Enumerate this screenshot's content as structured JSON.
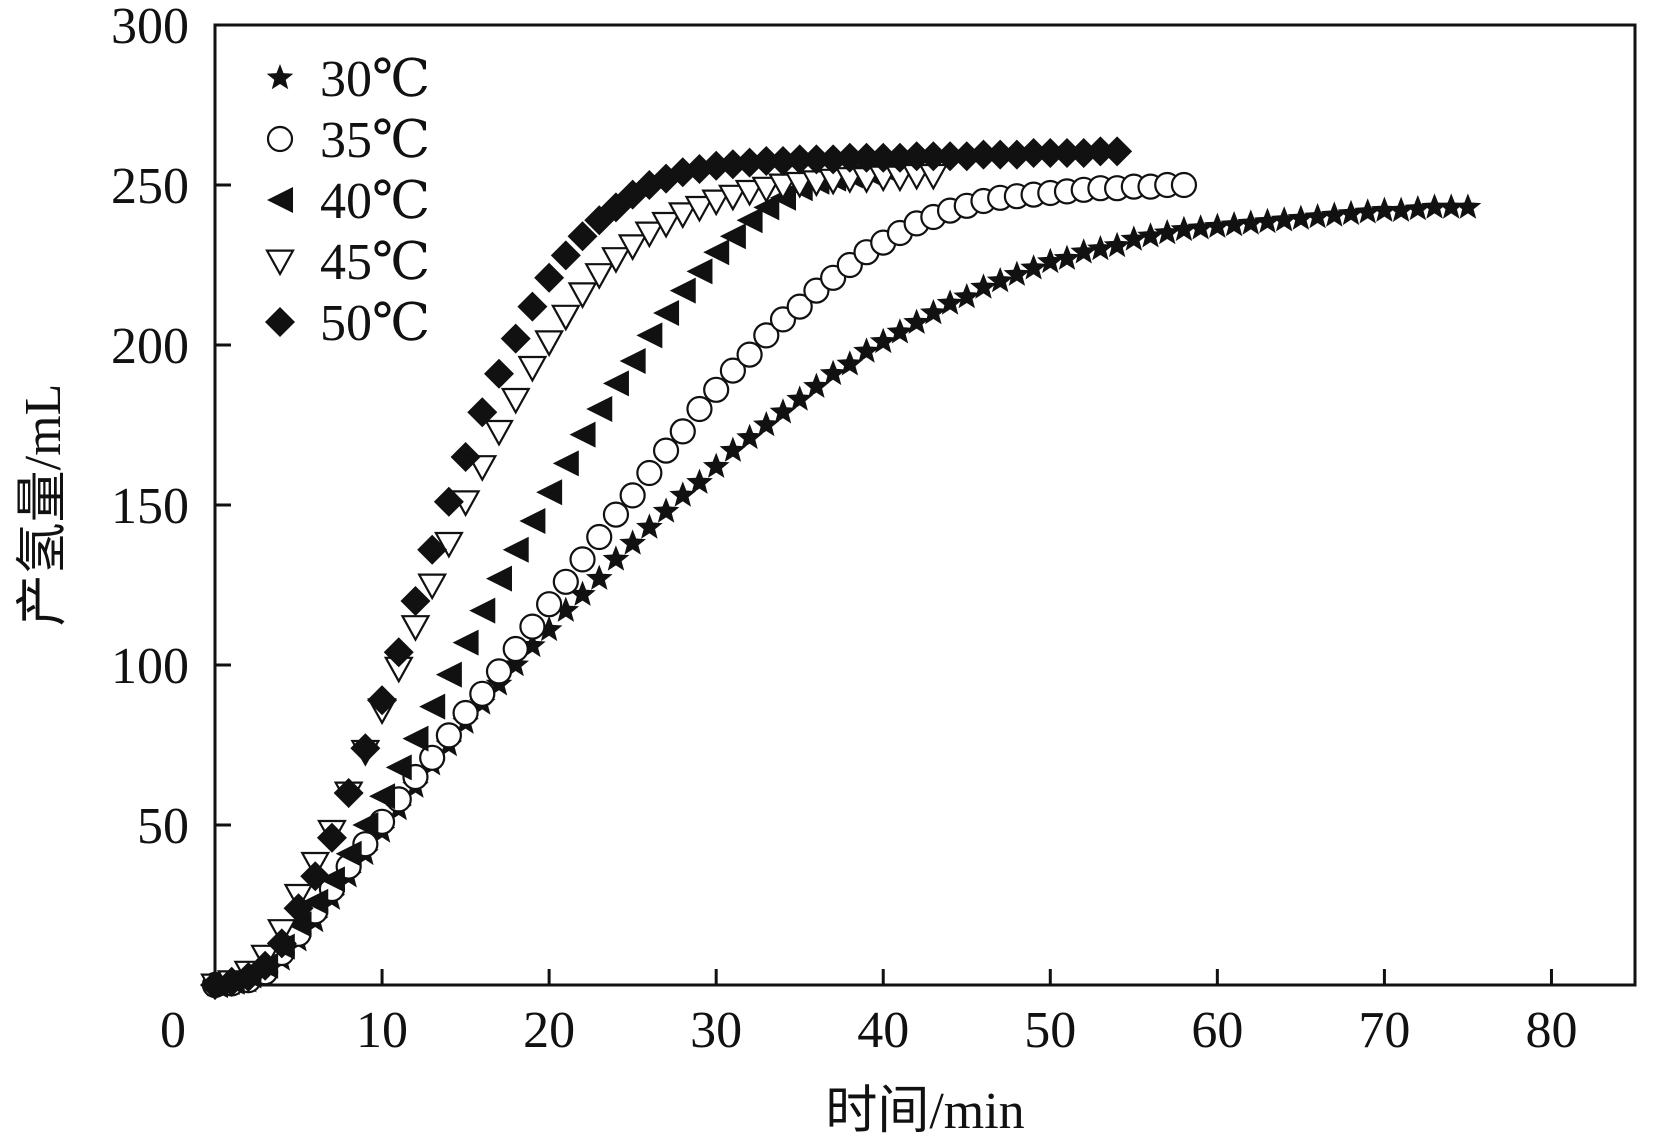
{
  "chart_data": {
    "type": "scatter",
    "title": "",
    "xlabel": "时间/min",
    "ylabel": "产氢量/mL",
    "xlim": [
      0,
      85
    ],
    "ylim": [
      0,
      300
    ],
    "xticks": [
      0,
      10,
      20,
      30,
      40,
      50,
      60,
      70,
      80
    ],
    "yticks": [
      50,
      100,
      150,
      200,
      250,
      300
    ],
    "x_tick_labels": [
      "0",
      "10",
      "20",
      "30",
      "40",
      "50",
      "60",
      "70",
      "80"
    ],
    "y_tick_labels": [
      "50",
      "100",
      "150",
      "200",
      "250",
      "300"
    ],
    "grid": false,
    "legend_position": "top-left",
    "series": [
      {
        "name": "30℃",
        "marker": "star",
        "color": "#111111",
        "x": [
          0,
          1,
          2,
          3,
          4,
          5,
          6,
          7,
          8,
          9,
          10,
          11,
          12,
          13,
          14,
          15,
          16,
          17,
          18,
          19,
          20,
          21,
          22,
          23,
          24,
          25,
          26,
          27,
          28,
          29,
          30,
          31,
          32,
          33,
          34,
          35,
          36,
          37,
          38,
          39,
          40,
          41,
          42,
          43,
          44,
          45,
          46,
          47,
          48,
          49,
          50,
          51,
          52,
          53,
          54,
          55,
          56,
          57,
          58,
          59,
          60,
          61,
          62,
          63,
          64,
          65,
          66,
          67,
          68,
          69,
          70,
          71,
          72,
          73,
          74,
          75
        ],
        "y": [
          0,
          0.4,
          1.2,
          3,
          8,
          14,
          20,
          27,
          34,
          41,
          48,
          55,
          62,
          69,
          75,
          82,
          88,
          94,
          100,
          106,
          111,
          117,
          122,
          127,
          133,
          138,
          143,
          148,
          153,
          157,
          162,
          167,
          171,
          175,
          179,
          183,
          187,
          191,
          194,
          198,
          201,
          204,
          207,
          210,
          213,
          215,
          218,
          220,
          222,
          224,
          226,
          227,
          229,
          230,
          231,
          233,
          234,
          235,
          236,
          236.5,
          237,
          237.5,
          238,
          238.5,
          239,
          239.5,
          240,
          240.5,
          241,
          241.5,
          242,
          242,
          242.5,
          243,
          243,
          243
        ]
      },
      {
        "name": "35℃",
        "marker": "circle-open",
        "color": "#111111",
        "x": [
          0,
          1,
          2,
          3,
          4,
          5,
          6,
          7,
          8,
          9,
          10,
          11,
          12,
          13,
          14,
          15,
          16,
          17,
          18,
          19,
          20,
          21,
          22,
          23,
          24,
          25,
          26,
          27,
          28,
          29,
          30,
          31,
          32,
          33,
          34,
          35,
          36,
          37,
          38,
          39,
          40,
          41,
          42,
          43,
          44,
          45,
          46,
          47,
          48,
          49,
          50,
          51,
          52,
          53,
          54,
          55,
          56,
          57,
          58
        ],
        "y": [
          0,
          0.5,
          1.5,
          4,
          10,
          16,
          23,
          30,
          37,
          44,
          51,
          58,
          65,
          71,
          78,
          85,
          91,
          98,
          105,
          112,
          119,
          126,
          133,
          140,
          147,
          153,
          160,
          167,
          173,
          180,
          186,
          192,
          197,
          203,
          208,
          212,
          217,
          221,
          225,
          229,
          232,
          235,
          238,
          240,
          242,
          243.5,
          245,
          246,
          246.5,
          247,
          247.5,
          248,
          248.5,
          249,
          249,
          249.5,
          249.5,
          250,
          250
        ]
      },
      {
        "name": "40℃",
        "marker": "triangle-left-filled",
        "color": "#111111",
        "x": [
          0,
          1,
          2,
          3,
          4,
          5,
          6,
          7,
          8,
          9,
          10,
          11,
          12,
          13,
          14,
          15,
          16,
          17,
          18,
          19,
          20,
          21,
          22,
          23,
          24,
          25,
          26,
          27,
          28,
          29,
          30,
          31,
          32,
          33,
          34,
          35,
          36,
          37,
          38,
          39,
          40
        ],
        "y": [
          0,
          1,
          3,
          6,
          12,
          19,
          26,
          33,
          41,
          50,
          59,
          68,
          77,
          87,
          97,
          107,
          117,
          127,
          136,
          145,
          154,
          163,
          172,
          180,
          188,
          195,
          203,
          210,
          217,
          223,
          229,
          234,
          239,
          243,
          246,
          249,
          251,
          252,
          253,
          254,
          255
        ]
      },
      {
        "name": "45℃",
        "marker": "triangle-down-open",
        "color": "#111111",
        "x": [
          0,
          1,
          2,
          3,
          4,
          5,
          6,
          7,
          8,
          9,
          10,
          11,
          12,
          13,
          14,
          15,
          16,
          17,
          18,
          19,
          20,
          21,
          22,
          23,
          24,
          25,
          26,
          27,
          28,
          29,
          30,
          31,
          32,
          33,
          34,
          35,
          36,
          37,
          38,
          39,
          40,
          41,
          42,
          43
        ],
        "y": [
          0,
          1,
          4,
          9,
          17,
          28,
          38,
          48,
          60,
          73,
          86,
          99,
          112,
          125,
          138,
          151,
          162,
          173,
          183,
          193,
          201,
          209,
          216,
          222,
          227,
          231,
          235,
          238,
          241,
          243,
          245,
          246.5,
          248,
          249,
          250,
          250.5,
          251,
          251.5,
          252,
          252,
          252.5,
          252.5,
          253,
          253
        ]
      },
      {
        "name": "50℃",
        "marker": "diamond-filled",
        "color": "#111111",
        "x": [
          0,
          1,
          2,
          3,
          4,
          5,
          6,
          7,
          8,
          9,
          10,
          11,
          12,
          13,
          14,
          15,
          16,
          17,
          18,
          19,
          20,
          21,
          22,
          23,
          24,
          25,
          26,
          27,
          28,
          29,
          30,
          31,
          32,
          33,
          34,
          35,
          36,
          37,
          38,
          39,
          40,
          41,
          42,
          43,
          44,
          45,
          46,
          47,
          48,
          49,
          50,
          51,
          52,
          53,
          54
        ],
        "y": [
          0,
          1,
          2.5,
          6,
          13,
          24,
          34,
          46,
          60,
          74,
          89,
          104,
          120,
          136,
          151,
          165,
          179,
          191,
          202,
          212,
          221,
          228,
          234,
          239,
          243,
          247,
          250,
          252,
          254,
          255,
          256,
          256.5,
          257,
          257.5,
          257.5,
          258,
          258,
          258,
          258.5,
          258.5,
          258.5,
          258.5,
          259,
          259,
          259,
          259,
          259.5,
          259.5,
          259.5,
          260,
          260,
          260,
          260,
          260.5,
          260.5
        ]
      }
    ]
  }
}
